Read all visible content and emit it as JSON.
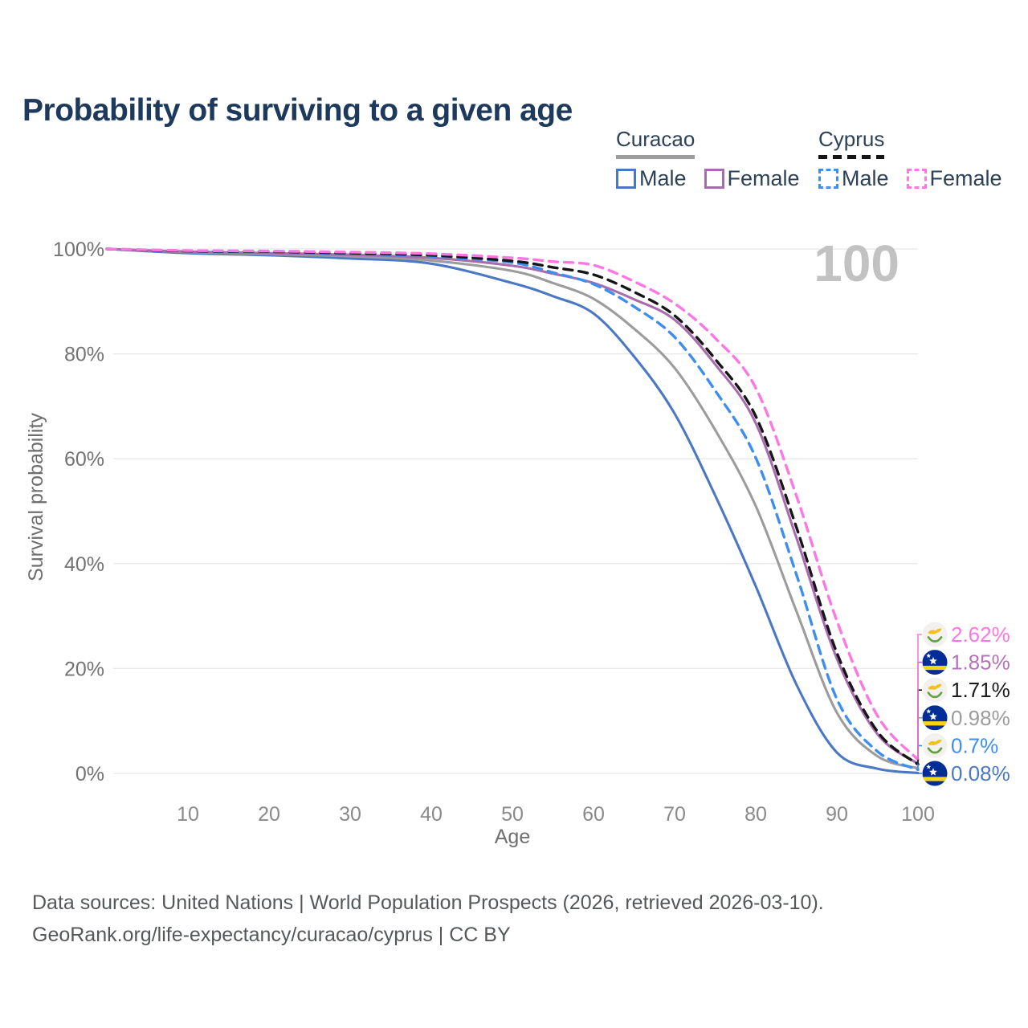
{
  "page": {
    "title": "Probability of surviving to a given age",
    "age_indicator": "100",
    "footer": {
      "line1": "Data sources: United Nations | World Population Prospects (2026, retrieved 2026-03-10).",
      "line2": "GeoRank.org/life-expectancy/curacao/cyprus | CC BY"
    }
  },
  "legend": {
    "groups": [
      {
        "country": "Curacao",
        "rule_style": "solid",
        "rule_color": "#9c9c9c",
        "items": [
          {
            "label": "Male",
            "color": "#4a78c4",
            "style": "solid"
          },
          {
            "label": "Female",
            "color": "#a86cae",
            "style": "solid"
          }
        ]
      },
      {
        "country": "Cyprus",
        "rule_style": "dashed",
        "rule_color": "#161616",
        "items": [
          {
            "label": "Male",
            "color": "#3e8ef0",
            "style": "dashed"
          },
          {
            "label": "Female",
            "color": "#fb78e4",
            "style": "dashed"
          }
        ]
      }
    ]
  },
  "chart_data": {
    "type": "line",
    "title": "Probability of surviving to a given age",
    "xlabel": "Age",
    "ylabel": "Survival probability",
    "xlim": [
      0,
      100
    ],
    "ylim": [
      0,
      100
    ],
    "grid": "horizontal",
    "legend_position": "top-right",
    "x_ticks": [
      {
        "value": 10,
        "label": "10"
      },
      {
        "value": 20,
        "label": "20"
      },
      {
        "value": 30,
        "label": "30"
      },
      {
        "value": 40,
        "label": "40"
      },
      {
        "value": 50,
        "label": "50"
      },
      {
        "value": 60,
        "label": "60"
      },
      {
        "value": 70,
        "label": "70"
      },
      {
        "value": 80,
        "label": "80"
      },
      {
        "value": 90,
        "label": "90"
      },
      {
        "value": 100,
        "label": "100"
      }
    ],
    "y_ticks": [
      {
        "value": 0,
        "label": "0%"
      },
      {
        "value": 20,
        "label": "20%"
      },
      {
        "value": 40,
        "label": "40%"
      },
      {
        "value": 60,
        "label": "60%"
      },
      {
        "value": 80,
        "label": "80%"
      },
      {
        "value": 100,
        "label": "100%"
      }
    ],
    "ages": [
      0,
      10,
      20,
      30,
      40,
      50,
      55,
      60,
      65,
      70,
      75,
      80,
      85,
      90,
      95,
      100
    ],
    "series": [
      {
        "name": "Curacao Male",
        "country": "Curacao",
        "sex": "Male",
        "color": "#4a78c4",
        "dash": false,
        "flag": "curacao",
        "values": [
          100,
          99.2,
          98.8,
          98.2,
          97.2,
          93.5,
          91.0,
          87.7,
          79.5,
          68.6,
          53.0,
          35.7,
          17.0,
          4.0,
          0.9,
          0.08
        ],
        "end_label": {
          "text": "0.08%",
          "value_pct": 0.08,
          "row": 5,
          "color": "#4a78c4"
        }
      },
      {
        "name": "Curacao Both sexes",
        "country": "Curacao",
        "sex": "Both sexes",
        "color": "#9c9c9c",
        "dash": false,
        "flag": "curacao",
        "values": [
          100,
          99.4,
          99.0,
          98.6,
          97.8,
          95.8,
          93.5,
          90.5,
          84.8,
          77.3,
          65.5,
          51.0,
          31.0,
          11.6,
          3.3,
          0.98
        ],
        "end_label": {
          "text": "0.98%",
          "value_pct": 0.98,
          "row": 3,
          "color": "#9c9c9c"
        }
      },
      {
        "name": "Curacao Female",
        "country": "Curacao",
        "sex": "Female",
        "color": "#a86cae",
        "dash": false,
        "flag": "curacao",
        "values": [
          100,
          99.5,
          99.2,
          98.9,
          98.3,
          96.8,
          95.3,
          93.5,
          90.4,
          86.5,
          78.0,
          66.8,
          45.0,
          21.9,
          7.5,
          1.85
        ],
        "end_label": {
          "text": "1.85%",
          "value_pct": 1.85,
          "row": 1,
          "color": "#b273b8"
        }
      },
      {
        "name": "Cyprus Male",
        "country": "Cyprus",
        "sex": "Male",
        "color": "#3e8ef0",
        "dash": true,
        "flag": "cyprus",
        "values": [
          100,
          99.6,
          99.4,
          99.1,
          98.6,
          97.4,
          95.5,
          93.3,
          89.0,
          83.2,
          73.0,
          60.2,
          38.0,
          14.2,
          4.2,
          0.7
        ],
        "end_label": {
          "text": "0.7%",
          "value_pct": 0.7,
          "row": 4,
          "color": "#3e8ef0"
        }
      },
      {
        "name": "Cyprus Both sexes",
        "country": "Cyprus",
        "sex": "Both sexes",
        "color": "#161616",
        "dash": true,
        "flag": "cyprus",
        "values": [
          100,
          99.6,
          99.5,
          99.2,
          98.8,
          97.7,
          96.5,
          95.1,
          91.8,
          87.3,
          79.0,
          68.1,
          47.0,
          23.0,
          8.0,
          1.71
        ],
        "end_label": {
          "text": "1.71%",
          "value_pct": 1.71,
          "row": 2,
          "color": "#1a1a1a"
        }
      },
      {
        "name": "Cyprus Female",
        "country": "Cyprus",
        "sex": "Female",
        "color": "#fb78e4",
        "dash": true,
        "flag": "cyprus",
        "values": [
          100,
          99.7,
          99.6,
          99.4,
          99.1,
          98.3,
          97.6,
          96.9,
          93.8,
          89.6,
          83.0,
          73.5,
          53.0,
          29.1,
          11.0,
          2.62
        ],
        "end_label": {
          "text": "2.62%",
          "value_pct": 2.62,
          "row": 0,
          "color": "#fb78e4"
        }
      }
    ],
    "flag_colors": {
      "curacao": {
        "field": "#002d96",
        "stripe": "#f7d515",
        "star": "#ffffff"
      },
      "cyprus": {
        "field": "#f2f1ed",
        "island": "#efc21f",
        "branches": "#61a144"
      }
    }
  }
}
